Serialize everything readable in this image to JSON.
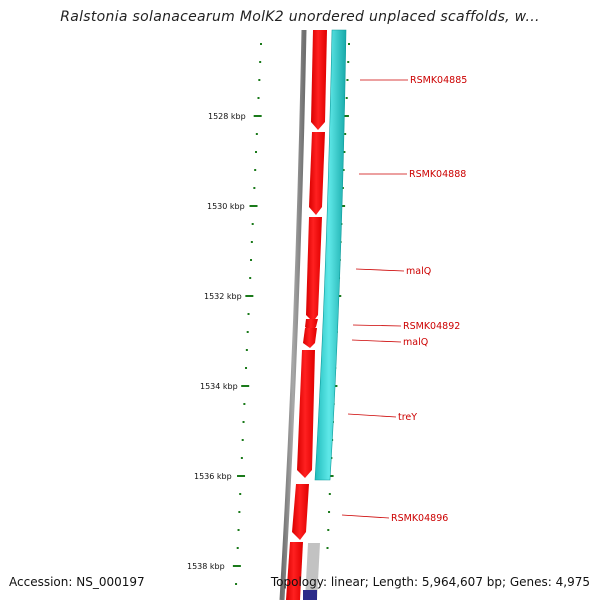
{
  "title": "Ralstonia solanacearum MolK2 unordered unplaced scaffolds, w...",
  "footer": {
    "accession": "Accession: NS_000197",
    "topology": "Topology: linear; Length: 5,964,607 bp; Genes: 4,975"
  },
  "ruler": {
    "labels": [
      "1528 kbp",
      "1530 kbp",
      "1532 kbp",
      "1534 kbp",
      "1536 kbp",
      "1538 kbp"
    ]
  },
  "genes": [
    {
      "name": "RSMK04885"
    },
    {
      "name": "RSMK04888"
    },
    {
      "name": "malQ"
    },
    {
      "name": "RSMK04892"
    },
    {
      "name": "malQ"
    },
    {
      "name": "treY"
    },
    {
      "name": "RSMK04896"
    }
  ],
  "colors": {
    "gene": "#ff0000",
    "gene_dark": "#c40000",
    "operon": "#33d6d6",
    "backbone": "#8a8a8a",
    "tick": "#1a7a1a",
    "label": "#cc0000",
    "tail_gray": "#c0c0c0",
    "tail_blue": "#2a2a88"
  }
}
